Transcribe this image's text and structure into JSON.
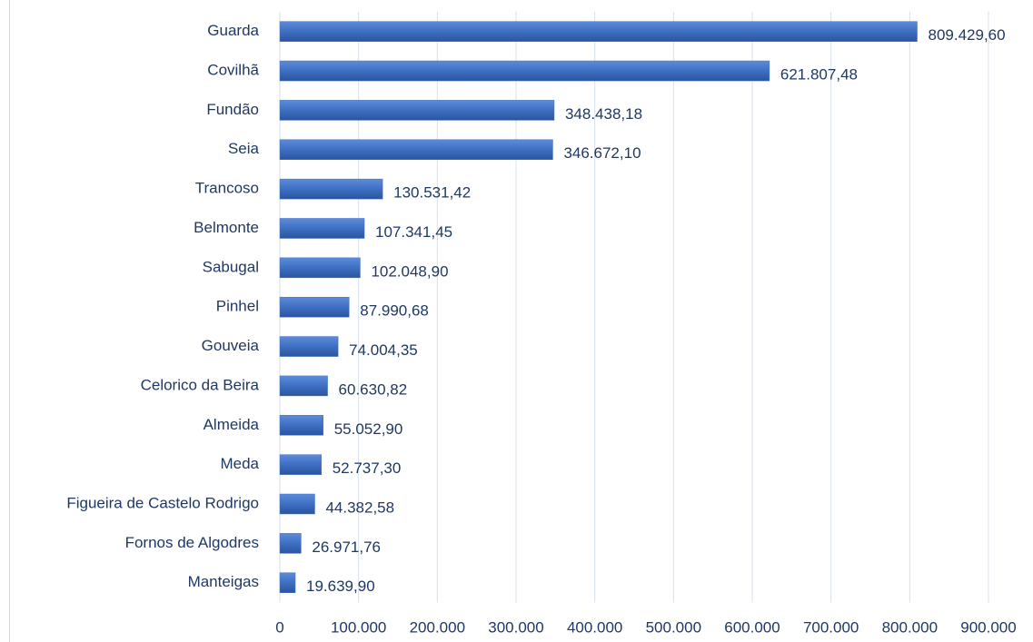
{
  "chart_data": {
    "type": "bar",
    "orientation": "horizontal",
    "categories": [
      "Guarda",
      "Covilhã",
      "Fundão",
      "Seia",
      "Trancoso",
      "Belmonte",
      "Sabugal",
      "Pinhel",
      "Gouveia",
      "Celorico da Beira",
      "Almeida",
      "Meda",
      "Figueira de Castelo Rodrigo",
      "Fornos de Algodres",
      "Manteigas"
    ],
    "values": [
      809429.6,
      621807.48,
      348438.18,
      346672.1,
      130531.42,
      107341.45,
      102048.9,
      87990.68,
      74004.35,
      60630.82,
      55052.9,
      52737.3,
      44382.58,
      26971.76,
      19639.9
    ],
    "value_labels": [
      "809.429,60",
      "621.807,48",
      "348.438,18",
      "346.672,10",
      "130.531,42",
      "107.341,45",
      "102.048,90",
      "87.990,68",
      "74.004,35",
      "60.630,82",
      "55.052,90",
      "52.737,30",
      "44.382,58",
      "26.971,76",
      "19.639,90"
    ],
    "color": "#4472c4",
    "xlim": [
      0,
      900000
    ],
    "xticks": [
      0,
      {
        "value": 100000,
        "label": "100.000"
      },
      {
        "value": 200000,
        "label": "200.000"
      },
      {
        "value": 300000,
        "label": "300.000"
      },
      {
        "value": 400000,
        "label": "400.000"
      },
      {
        "value": 500000,
        "label": "500.000"
      },
      {
        "value": 600000,
        "label": "600.000"
      },
      {
        "value": 700000,
        "label": "700.000"
      },
      {
        "value": 800000,
        "label": "800.000"
      },
      {
        "value": 900000,
        "label": "900.000"
      }
    ],
    "grid": true
  }
}
